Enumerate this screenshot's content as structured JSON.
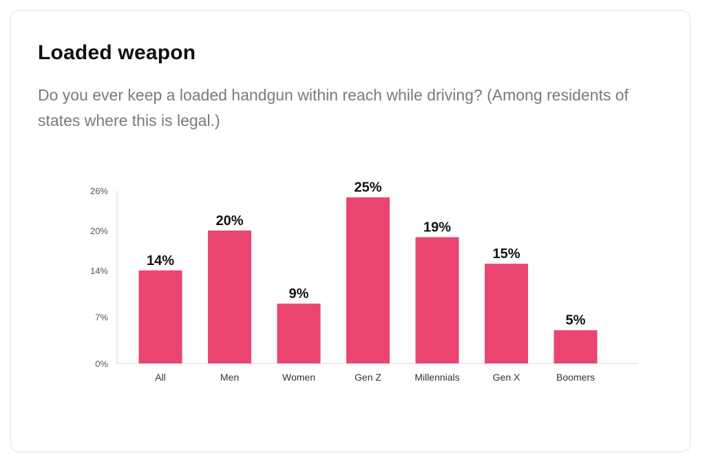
{
  "card": {
    "title": "Loaded weapon",
    "subtitle": "Do you ever keep a loaded handgun within reach while driving? (Among residents of states where this is legal.)"
  },
  "colors": {
    "bar": "#ea4570",
    "axis": "#d9d9d9"
  },
  "chart_data": {
    "type": "bar",
    "categories": [
      "All",
      "Men",
      "Women",
      "Gen Z",
      "Millennials",
      "Gen X",
      "Boomers"
    ],
    "values": [
      14,
      20,
      9,
      25,
      19,
      15,
      5
    ],
    "data_labels": [
      "14%",
      "20%",
      "9%",
      "25%",
      "19%",
      "15%",
      "5%"
    ],
    "y_ticks": [
      0,
      7,
      14,
      20,
      26
    ],
    "y_tick_labels": [
      "0%",
      "7%",
      "14%",
      "20%",
      "26%"
    ],
    "ylim": [
      0,
      26
    ],
    "grid": false,
    "legend": "none"
  }
}
